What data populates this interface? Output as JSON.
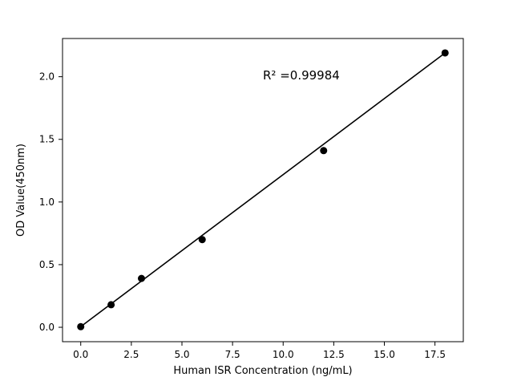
{
  "figure": {
    "background_color": "#ffffff"
  },
  "chart_data": {
    "type": "scatter",
    "title": "",
    "xlabel": "Human ISR Concentration (ng/mL)",
    "ylabel": "OD Value(450nm)",
    "annotation": {
      "text": "R² =0.99984",
      "x": 9.0,
      "y": 1.98
    },
    "x": [
      0,
      1.5,
      3,
      6,
      12,
      18
    ],
    "y": [
      0.005,
      0.18,
      0.39,
      0.7,
      1.41,
      2.19
    ],
    "fit_line": {
      "x": [
        0,
        18
      ],
      "y": [
        0.005,
        2.19
      ]
    },
    "xlim": [
      -0.9,
      18.9
    ],
    "ylim": [
      -0.115,
      2.305
    ],
    "xticks": [
      0.0,
      2.5,
      5.0,
      7.5,
      10.0,
      12.5,
      15.0,
      17.5
    ],
    "yticks": [
      0.0,
      0.5,
      1.0,
      1.5,
      2.0
    ],
    "tick_decimals": 1,
    "marker_color": "#000000",
    "line_color": "#000000",
    "spine_color": "#000000",
    "grid": false,
    "legend_position": "none"
  }
}
